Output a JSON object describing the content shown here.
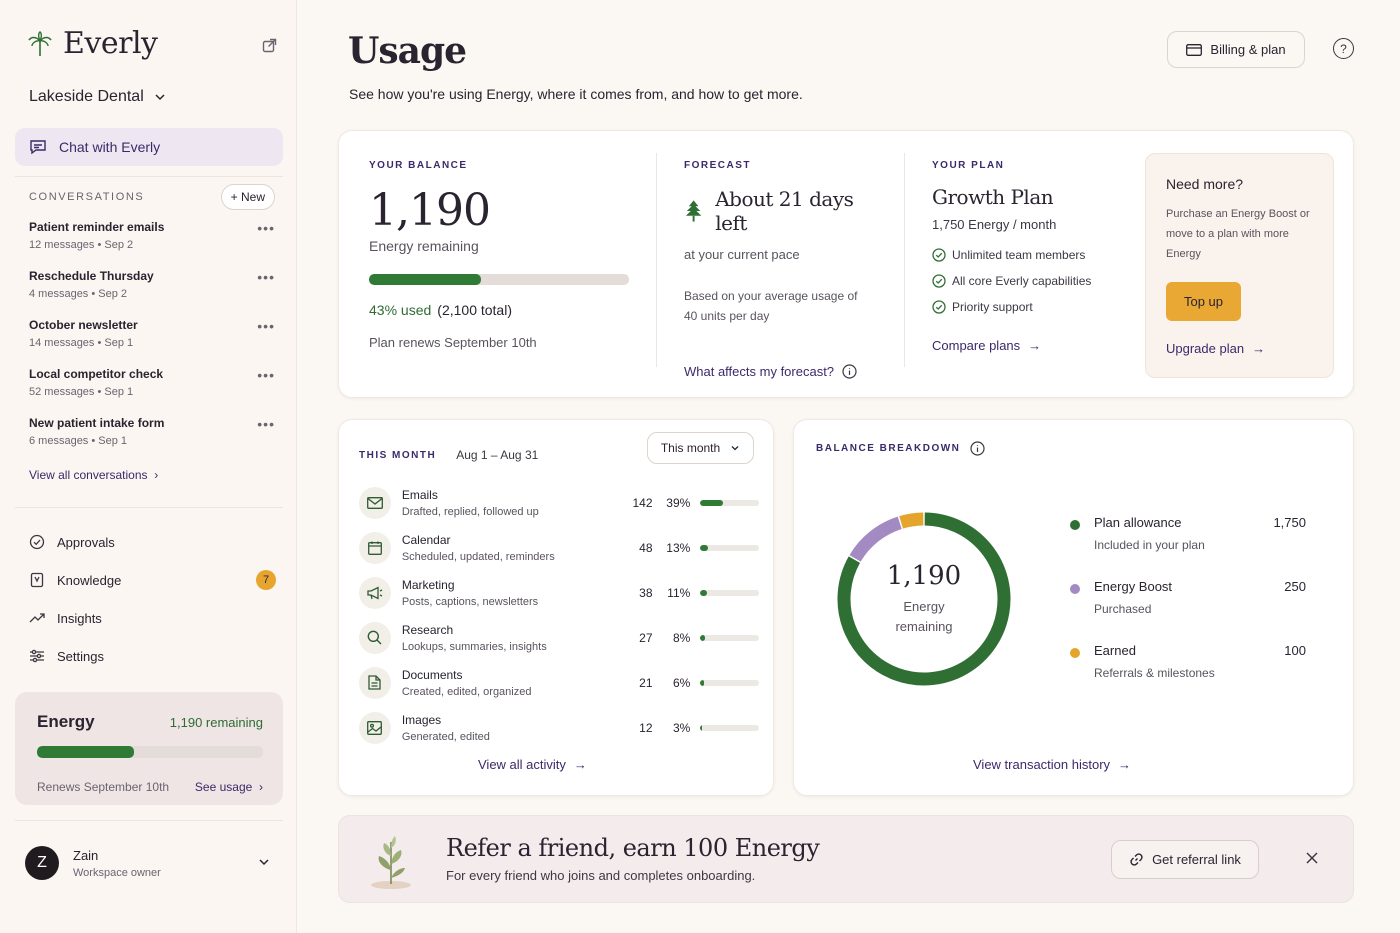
{
  "brand": {
    "name": "Everly"
  },
  "workspace": {
    "name": "Lakeside Dental"
  },
  "sidebar": {
    "chat_label": "Chat with Everly",
    "conversations_label": "CONVERSATIONS",
    "new_label": "+ New",
    "conversations": [
      {
        "title": "Patient reminder emails",
        "meta": "12 messages • Sep 2"
      },
      {
        "title": "Reschedule Thursday",
        "meta": "4 messages • Sep 2"
      },
      {
        "title": "October newsletter",
        "meta": "14 messages • Sep 1"
      },
      {
        "title": "Local competitor check",
        "meta": "52 messages • Sep 1"
      },
      {
        "title": "New patient intake form",
        "meta": "6 messages • Sep 1"
      }
    ],
    "view_all_conversations": "View all conversations",
    "nav": [
      {
        "label": "Approvals",
        "icon": "check-circle-icon"
      },
      {
        "label": "Knowledge",
        "icon": "book-icon",
        "badge": "7"
      },
      {
        "label": "Insights",
        "icon": "trend-icon"
      },
      {
        "label": "Settings",
        "icon": "sliders-icon"
      }
    ],
    "energy": {
      "title": "Energy",
      "remaining": "1,190 remaining",
      "used_fraction": 0.43,
      "renews": "Renews September 10th",
      "see_usage": "See usage"
    },
    "user": {
      "initial": "Z",
      "name": "Zain",
      "role": "Workspace owner"
    }
  },
  "header": {
    "title": "Usage",
    "subtitle": "See how you're using Energy, where it comes from, and how to get more.",
    "billing_label": "Billing & plan",
    "help": "?"
  },
  "balance": {
    "label": "YOUR BALANCE",
    "amount": "1,190",
    "amount_caption": "Energy remaining",
    "used_fraction": 0.43,
    "used_text": "43% used",
    "total_text": "(2,100 total)",
    "renews": "Plan renews September 10th"
  },
  "forecast": {
    "label": "FORECAST",
    "headline": "About 21 days left",
    "pace": "at your current pace",
    "detail": "Based on your average usage of 40 units per day",
    "link": "What affects my forecast?"
  },
  "plan": {
    "label": "YOUR PLAN",
    "name": "Growth Plan",
    "allowance": "1,750 Energy / month",
    "features": [
      "Unlimited team members",
      "All core Everly capabilities",
      "Priority support"
    ],
    "link": "Compare plans"
  },
  "need_more": {
    "title": "Need more?",
    "body": "Purchase an Energy Boost or move to a plan with more Energy",
    "topup": "Top up",
    "upgrade": "Upgrade plan"
  },
  "month": {
    "label": "THIS MONTH",
    "range": "Aug 1 – Aug 31",
    "select": "This month",
    "activities": [
      {
        "name": "Emails",
        "desc": "Drafted, replied, followed up",
        "count": "142",
        "pct": "39%",
        "frac": 0.39,
        "icon": "mail-icon"
      },
      {
        "name": "Calendar",
        "desc": "Scheduled, updated, reminders",
        "count": "48",
        "pct": "13%",
        "frac": 0.13,
        "icon": "calendar-icon"
      },
      {
        "name": "Marketing",
        "desc": "Posts, captions, newsletters",
        "count": "38",
        "pct": "11%",
        "frac": 0.11,
        "icon": "megaphone-icon"
      },
      {
        "name": "Research",
        "desc": "Lookups, summaries, insights",
        "count": "27",
        "pct": "8%",
        "frac": 0.08,
        "icon": "search-icon"
      },
      {
        "name": "Documents",
        "desc": "Created, edited, organized",
        "count": "21",
        "pct": "6%",
        "frac": 0.06,
        "icon": "document-icon"
      },
      {
        "name": "Images",
        "desc": "Generated, edited",
        "count": "12",
        "pct": "3%",
        "frac": 0.03,
        "icon": "image-icon"
      }
    ],
    "view_all": "View all activity"
  },
  "breakdown": {
    "label": "BALANCE BREAKDOWN",
    "center_value": "1,190",
    "center_caption": "Energy remaining",
    "items": [
      {
        "name": "Plan allowance",
        "sub": "Included in your plan",
        "value": "1,750",
        "amount": 1750,
        "color": "#2f6f33"
      },
      {
        "name": "Energy Boost",
        "sub": "Purchased",
        "value": "250",
        "amount": 250,
        "color": "#a48ac2"
      },
      {
        "name": "Earned",
        "sub": "Referrals & milestones",
        "value": "100",
        "amount": 100,
        "color": "#e5a52d"
      }
    ],
    "view_history": "View transaction history"
  },
  "referral": {
    "title": "Refer a friend, earn 100 Energy",
    "subtitle": "For every friend who joins and completes onboarding.",
    "button": "Get referral link"
  }
}
